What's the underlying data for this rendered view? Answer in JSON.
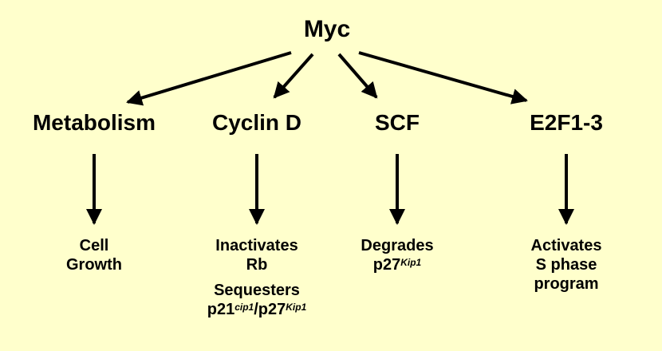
{
  "root": {
    "label": "Myc"
  },
  "targets": [
    {
      "label": "Metabolism"
    },
    {
      "label": "Cyclin D"
    },
    {
      "label": "SCF"
    },
    {
      "label": "E2F1-3"
    }
  ],
  "outcomes": {
    "metabolism": {
      "line1": "Cell",
      "line2": "Growth"
    },
    "cyclin_d": {
      "line1": "Inactivates",
      "line2": "Rb",
      "line3": "Sequesters",
      "p21_base": "p21",
      "p21_sup": "cip1",
      "sep": "/",
      "p27_base": "p27",
      "p27_sup": "Kip1"
    },
    "scf": {
      "line1": "Degrades",
      "p27_base": "p27",
      "p27_sup": "Kip1"
    },
    "e2f": {
      "line1": "Activates",
      "line2": "S phase",
      "line3": "program"
    }
  },
  "colors": {
    "background": "#FFFFCC",
    "ink": "#000000"
  }
}
